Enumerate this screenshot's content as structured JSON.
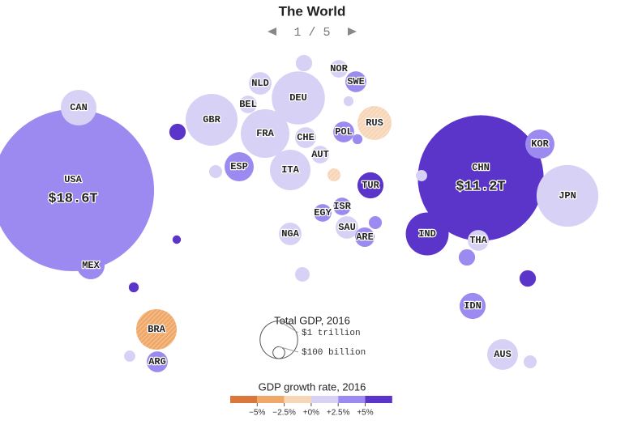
{
  "chart_data": {
    "type": "bubble",
    "title": "The World",
    "page_indicator": "1 / 5",
    "categories": [
      "USA",
      "CHN",
      "JPN",
      "CAN",
      "MEX",
      "BRA",
      "ARG",
      "GBR",
      "FRA",
      "DEU",
      "NLD",
      "BEL",
      "ITA",
      "ESP",
      "CHE",
      "AUT",
      "NOR",
      "SWE",
      "POL",
      "RUS",
      "TUR",
      "ISR",
      "EGY",
      "SAU",
      "ARE",
      "NGA",
      "IND",
      "KOR",
      "THA",
      "IDN",
      "AUS",
      null,
      null,
      null,
      null,
      null,
      null,
      null,
      null,
      null,
      null,
      null,
      null,
      null,
      null,
      null,
      null,
      null
    ],
    "values": [
      18.6,
      11.2,
      2.7,
      0.9,
      0.54,
      1.16,
      0.31,
      1.9,
      1.67,
      2.0,
      0.36,
      0.22,
      1.16,
      0.6,
      0.31,
      0.22,
      0.22,
      0.31,
      0.31,
      0.82,
      0.48,
      0.22,
      0.22,
      0.36,
      0.27,
      0.36,
      1.3,
      0.6,
      0.31,
      0.48,
      0.67,
      0.19,
      0.19,
      0.12,
      0.12,
      0.09,
      0.19,
      0.19,
      0.15,
      0.15,
      0.12,
      0.12,
      0.15,
      0.07,
      0.09,
      0.05,
      0.07,
      0.07
    ],
    "value_labels": [
      "$18.6T",
      "$11.2T",
      null,
      null,
      null,
      null,
      null,
      null,
      null,
      null,
      null,
      null,
      null,
      null,
      null,
      null,
      null,
      null,
      null,
      null,
      null,
      null,
      null,
      null,
      null,
      null,
      null,
      null,
      null,
      null,
      null,
      null,
      null,
      null,
      null,
      null,
      null,
      null,
      null,
      null,
      null,
      null,
      null,
      null,
      null,
      null,
      null,
      null
    ],
    "growth": [
      2.6,
      6.7,
      1.0,
      1.4,
      2.9,
      -3.6,
      2.6,
      1.8,
      1.2,
      1.9,
      2.2,
      1.5,
      0.9,
      3.3,
      1.4,
      1.5,
      1.1,
      3.2,
      2.9,
      -0.2,
      5.5,
      4.0,
      4.3,
      1.7,
      3.0,
      0.5,
      7.1,
      2.8,
      2.2,
      4.9,
      2.4,
      1.2,
      6.0,
      1.0,
      -1.5,
      1.3,
      6.5,
      3.5,
      6.2,
      6.1,
      1.5,
      3.0,
      1.2,
      6.0,
      1.0,
      6.2,
      3.0,
      1.5
    ],
    "size_legend_title": "Total GDP, 2016",
    "size_legend": [
      {
        "value": 1,
        "label": "$1 trillion"
      },
      {
        "value": 0.1,
        "label": "$100 billion"
      }
    ],
    "color_legend_title": "GDP growth rate, 2016",
    "growth_ticks": [
      {
        "value": -5,
        "label": "−5%"
      },
      {
        "value": -2.5,
        "label": "−2.5%"
      },
      {
        "value": 0,
        "label": "+0%"
      },
      {
        "value": 2.5,
        "label": "+2.5%"
      },
      {
        "value": 5,
        "label": "+5%"
      }
    ],
    "growth_colors": [
      "#d9783a",
      "#f0a868",
      "#f7d6b8",
      "#d6d1f5",
      "#9c8af0",
      "#5b34c9"
    ],
    "hatch_negative": true
  }
}
